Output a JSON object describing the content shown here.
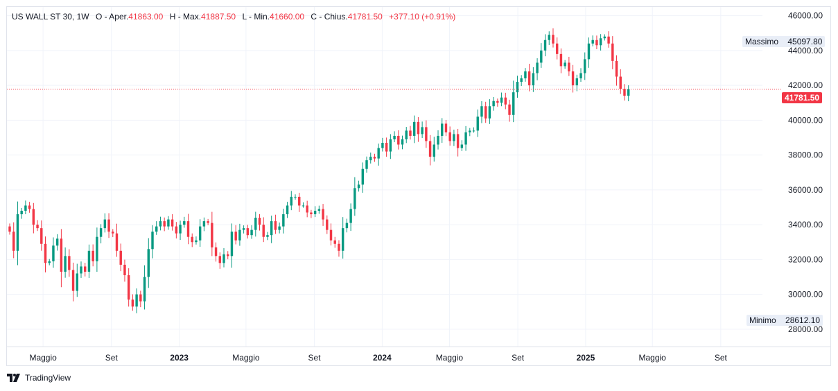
{
  "legend": {
    "symbol": "US WALL ST 30, 1W",
    "open_label": "O - Aper.",
    "open": "41863.00",
    "high_label": "H - Max.",
    "high": "41887.50",
    "low_label": "L - Min.",
    "low": "41660.00",
    "close_label": "C - Chius.",
    "close": "41781.50",
    "change": "+377.10 (+0.91%)"
  },
  "price_tags": {
    "max_label": "Massimo",
    "max_value": "45097.80",
    "min_label": "Minimo",
    "min_value": "28612.10",
    "last_value": "41781.50"
  },
  "colors": {
    "up": "#089981",
    "down": "#f23645",
    "grid": "#f0f3fa",
    "axis_text": "#131722"
  },
  "brand": {
    "name": "TradingView",
    "icon": "tradingview-logo-icon"
  },
  "chart_data": {
    "type": "candlestick",
    "title": "US WALL ST 30, 1W",
    "ylim": [
      27000,
      46500
    ],
    "y_ticks": [
      "28000.00",
      "30000.00",
      "32000.00",
      "34000.00",
      "36000.00",
      "38000.00",
      "40000.00",
      "42000.00",
      "44000.00",
      "46000.00"
    ],
    "x_ticks": [
      {
        "label": "Maggio",
        "date": "2022-05-01"
      },
      {
        "label": "Set",
        "date": "2022-09-01"
      },
      {
        "label": "2023",
        "date": "2023-01-01"
      },
      {
        "label": "Maggio",
        "date": "2023-05-01"
      },
      {
        "label": "Set",
        "date": "2023-09-01"
      },
      {
        "label": "2024",
        "date": "2024-01-01"
      },
      {
        "label": "Maggio",
        "date": "2024-05-01"
      },
      {
        "label": "Set",
        "date": "2024-09-01"
      },
      {
        "label": "2025",
        "date": "2025-01-01"
      },
      {
        "label": "Maggio",
        "date": "2025-05-01"
      },
      {
        "label": "Set",
        "date": "2025-09-01"
      }
    ],
    "x_range": [
      "2022-02-25",
      "2025-11-15"
    ],
    "last_price": 41781.5,
    "grid": true,
    "closes": [
      33600,
      32500,
      34600,
      34800,
      35100,
      34900,
      34000,
      33800,
      32900,
      31800,
      31900,
      32800,
      33200,
      31300,
      32200,
      31400,
      30200,
      31200,
      31600,
      31300,
      32500,
      31900,
      33300,
      33800,
      34300,
      33600,
      33500,
      32500,
      31700,
      31100,
      29700,
      29300,
      30000,
      29600,
      31000,
      32600,
      33600,
      33900,
      34200,
      33900,
      34300,
      33900,
      33500,
      34000,
      34200,
      33300,
      33000,
      33100,
      33900,
      34200,
      34100,
      32700,
      32200,
      31800,
      32300,
      32200,
      33600,
      33100,
      33700,
      33800,
      33400,
      33700,
      34400,
      34000,
      33300,
      33400,
      34200,
      33700,
      33900,
      34600,
      35100,
      35600,
      35600,
      35100,
      35100,
      34700,
      34600,
      34800,
      34900,
      34300,
      33700,
      33100,
      32900,
      32500,
      33800,
      34100,
      34900,
      36100,
      36300,
      37200,
      37700,
      37900,
      37800,
      38400,
      38700,
      38200,
      38900,
      39100,
      38600,
      38900,
      39400,
      39100,
      39900,
      39200,
      39600,
      38800,
      37900,
      38600,
      39100,
      39800,
      39300,
      38800,
      39200,
      38400,
      38600,
      39300,
      39400,
      39400,
      40200,
      40800,
      40100,
      40800,
      41100,
      41000,
      41300,
      40900,
      40300,
      41600,
      42200,
      42400,
      42800,
      42000,
      42700,
      43300,
      44000,
      44600,
      44900,
      44400,
      43800,
      43100,
      43300,
      42800,
      42000,
      42400,
      42700,
      43500,
      44400,
      44600,
      44300,
      44700,
      44800,
      44400,
      43400,
      42500,
      41800,
      41400,
      41782
    ]
  }
}
